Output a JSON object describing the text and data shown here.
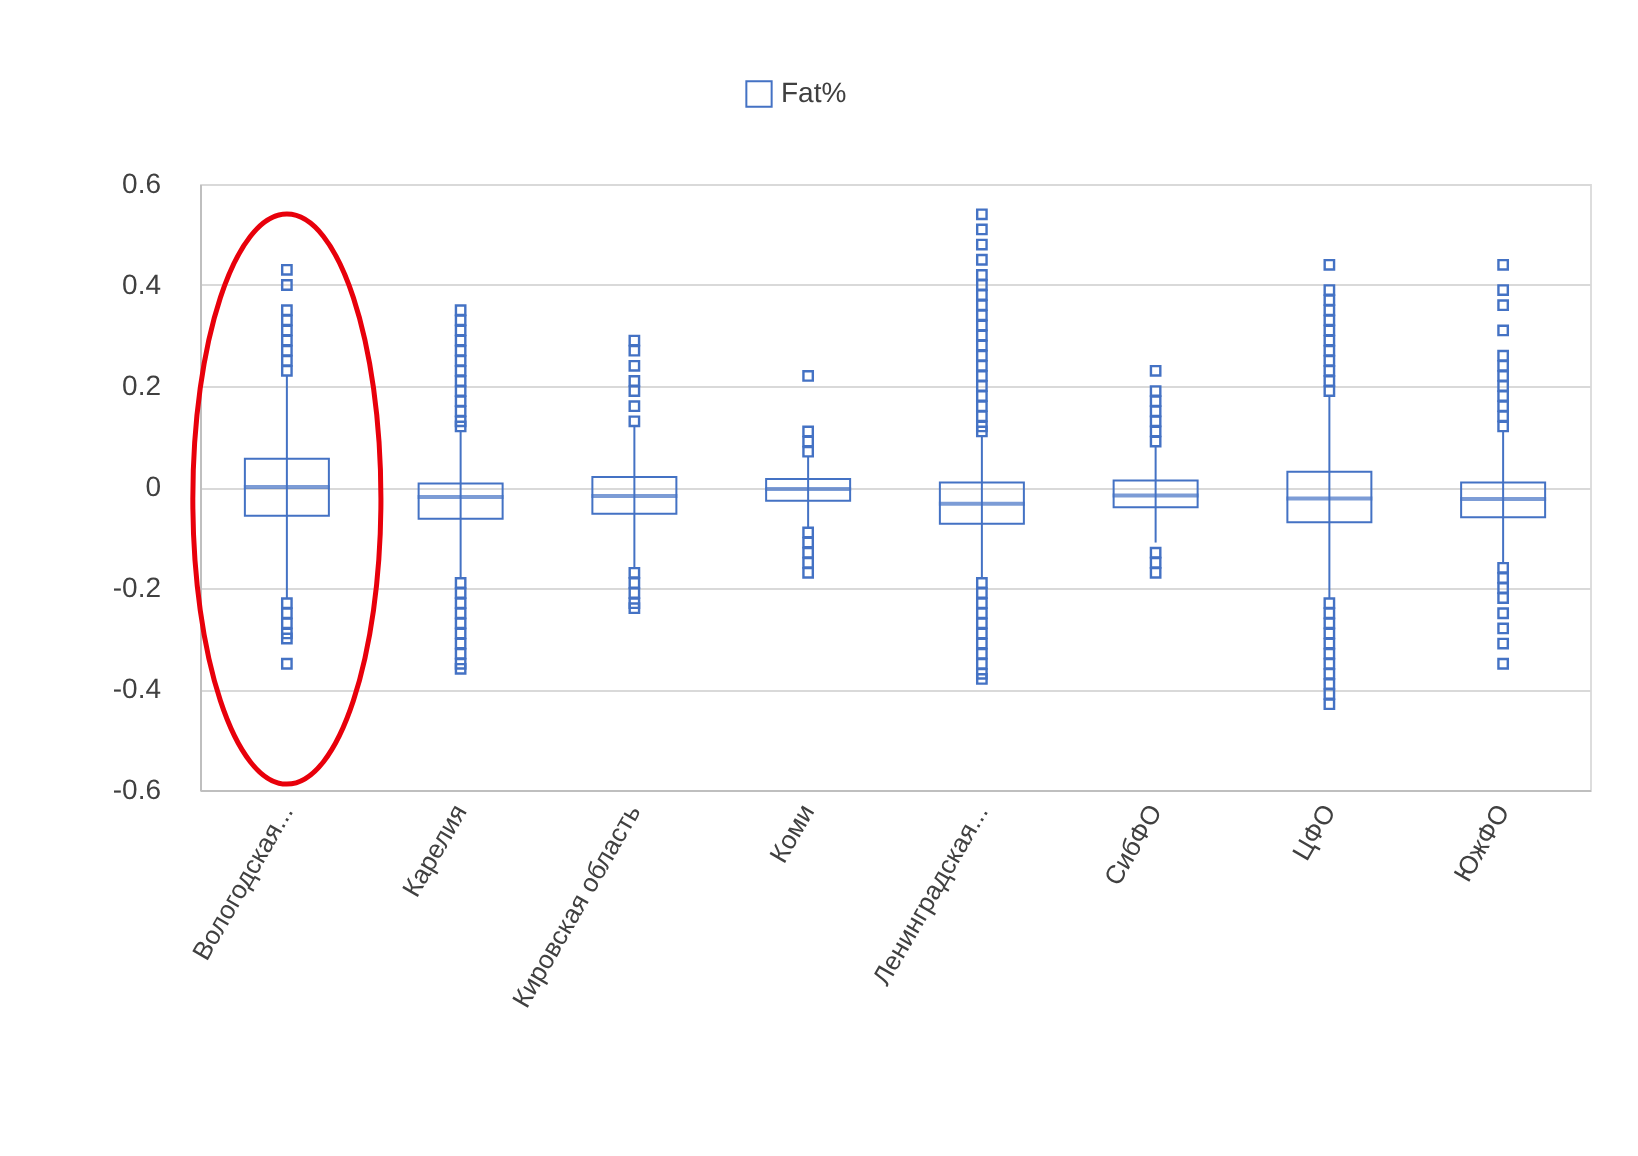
{
  "chart_data": {
    "type": "box",
    "categories": [
      "Вологодская...",
      "Карелия",
      "Кировская область",
      "Коми",
      "Ленинградская...",
      "СибФО",
      "ЦФО",
      "ЮжФО"
    ],
    "series": [
      {
        "name": "Fat%",
        "color": "#4472c4",
        "boxes": [
          {
            "low": -0.22,
            "q1": -0.057,
            "median": 0.0,
            "q3": 0.056,
            "high": 0.22,
            "outliers": [
              0.43,
              0.4,
              0.35,
              0.33,
              0.31,
              0.29,
              0.27,
              0.25,
              0.23,
              -0.23,
              -0.25,
              -0.27,
              -0.29,
              -0.3,
              -0.35
            ]
          },
          {
            "low": -0.18,
            "q1": -0.063,
            "median": -0.02,
            "q3": 0.007,
            "high": 0.11,
            "outliers": [
              0.35,
              0.33,
              0.31,
              0.29,
              0.27,
              0.25,
              0.23,
              0.21,
              0.19,
              0.17,
              0.15,
              0.13,
              0.12,
              -0.19,
              -0.21,
              -0.23,
              -0.25,
              -0.27,
              -0.29,
              -0.31,
              -0.33,
              -0.35,
              -0.36
            ]
          },
          {
            "low": -0.16,
            "q1": -0.053,
            "median": -0.018,
            "q3": 0.02,
            "high": 0.12,
            "outliers": [
              0.13,
              0.16,
              0.19,
              0.21,
              0.24,
              0.27,
              0.29,
              -0.17,
              -0.19,
              -0.21,
              -0.23,
              -0.24
            ]
          },
          {
            "low": -0.08,
            "q1": -0.027,
            "median": -0.004,
            "q3": 0.016,
            "high": 0.06,
            "outliers": [
              0.07,
              0.09,
              0.11,
              0.22,
              -0.09,
              -0.11,
              -0.13,
              -0.15,
              -0.17
            ]
          },
          {
            "low": -0.18,
            "q1": -0.073,
            "median": -0.033,
            "q3": 0.009,
            "high": 0.1,
            "outliers": [
              0.54,
              0.51,
              0.48,
              0.45,
              0.42,
              0.4,
              0.38,
              0.36,
              0.34,
              0.32,
              0.3,
              0.28,
              0.26,
              0.24,
              0.22,
              0.2,
              0.18,
              0.16,
              0.14,
              0.12,
              0.11,
              -0.19,
              -0.21,
              -0.23,
              -0.25,
              -0.27,
              -0.29,
              -0.31,
              -0.33,
              -0.35,
              -0.37,
              -0.38
            ]
          },
          {
            "low": -0.11,
            "q1": -0.04,
            "median": -0.017,
            "q3": 0.013,
            "high": 0.08,
            "outliers": [
              0.09,
              0.11,
              0.13,
              0.15,
              0.17,
              0.19,
              0.23,
              -0.13,
              -0.15,
              -0.17
            ]
          },
          {
            "low": -0.22,
            "q1": -0.07,
            "median": -0.023,
            "q3": 0.03,
            "high": 0.18,
            "outliers": [
              0.19,
              0.21,
              0.23,
              0.25,
              0.27,
              0.29,
              0.31,
              0.33,
              0.35,
              0.37,
              0.39,
              0.44,
              -0.23,
              -0.25,
              -0.27,
              -0.29,
              -0.31,
              -0.33,
              -0.35,
              -0.37,
              -0.39,
              -0.41,
              -0.43
            ]
          },
          {
            "low": -0.15,
            "q1": -0.06,
            "median": -0.024,
            "q3": 0.009,
            "high": 0.11,
            "outliers": [
              0.12,
              0.14,
              0.16,
              0.18,
              0.2,
              0.22,
              0.24,
              0.26,
              0.31,
              0.36,
              0.39,
              0.44,
              -0.16,
              -0.18,
              -0.2,
              -0.22,
              -0.25,
              -0.28,
              -0.31,
              -0.35
            ]
          }
        ]
      }
    ],
    "ylim": [
      -0.6,
      0.6
    ],
    "yticks": [
      -0.6,
      -0.4,
      -0.2,
      {
        "value": 0,
        "label": "0"
      },
      0.2,
      0.4,
      0.6
    ],
    "grid": "y",
    "legend": "top",
    "marker": "square"
  }
}
